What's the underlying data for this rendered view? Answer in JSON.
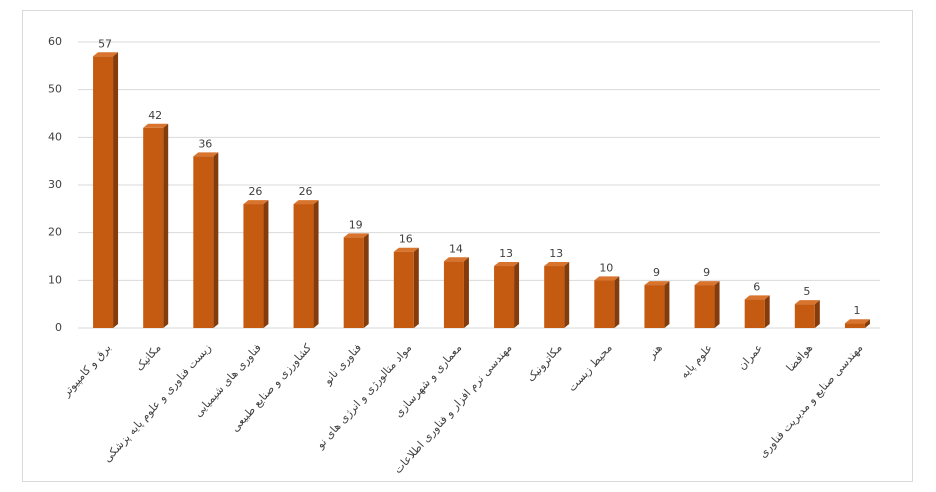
{
  "chart_data": {
    "type": "bar",
    "categories": [
      "برق و کامپیوتر",
      "مکانیک",
      "زیست فناوری و علوم پایه پزشکی",
      "فناوری های شیمیایی",
      "کشاورزی و صنایع طبیعی",
      "فناوری نانو",
      "مواد متالورژی و انرژی های نو",
      "معماری و شهرسازی",
      "مهندسی نرم افزار و فناوری اطلاعات",
      "مکاترونیک",
      "محیط زیست",
      "هنر",
      "علوم پایه",
      "عمران",
      "هوافضا",
      "مهندسی صنایع و مدیریت فناوری"
    ],
    "values": [
      57,
      42,
      36,
      26,
      26,
      19,
      16,
      14,
      13,
      13,
      10,
      9,
      9,
      6,
      5,
      1
    ],
    "color": "#c55a11",
    "ylim": [
      0,
      60
    ],
    "yticks": [
      0,
      10,
      20,
      30,
      40,
      50,
      60
    ],
    "grid": true
  }
}
